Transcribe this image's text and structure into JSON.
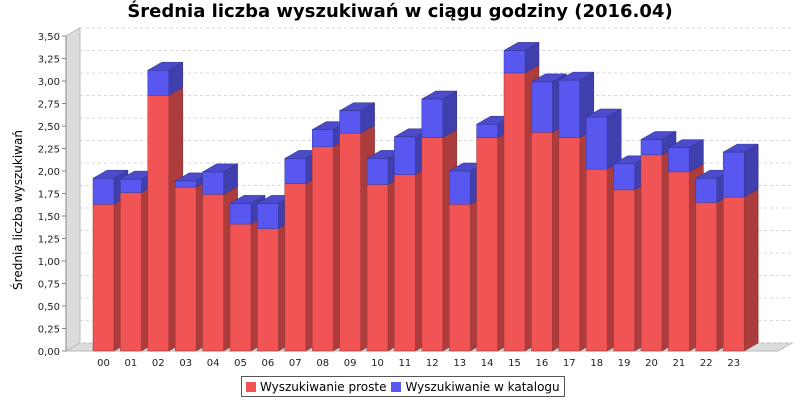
{
  "chart_data": {
    "type": "bar",
    "stacked": true,
    "three_d": true,
    "title": "Średnia liczba wyszukiwań w ciągu godziny (2016.04)",
    "ylabel": "Średnia liczba wyszukiwań",
    "xlabel": "",
    "ylim": [
      0,
      3.5
    ],
    "y_tick_step": 0.25,
    "y_tick_labels": [
      "0,00",
      "0,25",
      "0,50",
      "0,75",
      "1,00",
      "1,25",
      "1,50",
      "1,75",
      "2,00",
      "2,25",
      "2,50",
      "2,75",
      "3,00",
      "3,25",
      "3,50"
    ],
    "grid": true,
    "legend_position": "bottom",
    "categories": [
      "00",
      "01",
      "02",
      "03",
      "04",
      "05",
      "06",
      "07",
      "08",
      "09",
      "10",
      "11",
      "12",
      "13",
      "14",
      "15",
      "16",
      "17",
      "18",
      "19",
      "20",
      "21",
      "22",
      "23"
    ],
    "series": [
      {
        "name": "Wyszukiwanie proste",
        "color": "#f05454",
        "values": [
          1.63,
          1.76,
          2.84,
          1.82,
          1.74,
          1.41,
          1.36,
          1.86,
          2.27,
          2.42,
          1.85,
          1.96,
          2.37,
          1.63,
          2.37,
          3.09,
          2.43,
          2.37,
          2.02,
          1.79,
          2.18,
          1.99,
          1.65,
          1.71
        ]
      },
      {
        "name": "Wyszukiwanie w katalogu",
        "color": "#5858f0",
        "values": [
          0.29,
          0.15,
          0.28,
          0.07,
          0.25,
          0.23,
          0.28,
          0.28,
          0.19,
          0.25,
          0.29,
          0.42,
          0.43,
          0.37,
          0.15,
          0.25,
          0.56,
          0.64,
          0.58,
          0.29,
          0.17,
          0.27,
          0.27,
          0.5
        ]
      }
    ]
  }
}
